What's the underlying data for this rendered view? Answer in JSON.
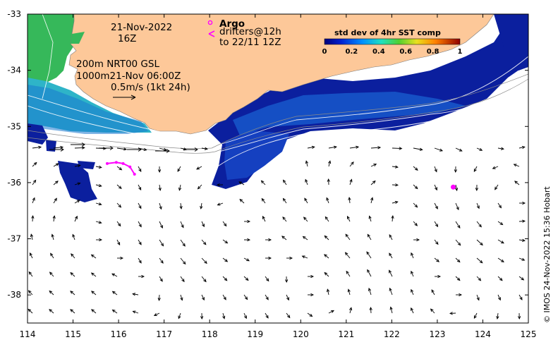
{
  "annotation": {
    "date": "21-Nov-2022",
    "hour": "16Z",
    "depth_line1": "200m  NRT00 GSL",
    "depth_line2": "1000m21-Nov 06:00Z",
    "scale_label": "0.5m/s (1kt 24h)",
    "argo_label": "Argo",
    "drifters_line1": "drifters@12h",
    "drifters_line2": "to 22/11 12Z"
  },
  "colorbar": {
    "title": "std dev of 4hr SST comp",
    "ticks": [
      "0",
      "0.2",
      "0.4",
      "0.6",
      "0.8",
      "1"
    ]
  },
  "credit": "© IMOS 24-Nov-2022 15:36 Hobart",
  "axes": {
    "x_ticks": [
      "114",
      "115",
      "116",
      "117",
      "118",
      "119",
      "120",
      "121",
      "122",
      "123",
      "124",
      "125"
    ],
    "y_ticks": [
      "-33",
      "-34",
      "-35",
      "-36",
      "-37",
      "-38"
    ],
    "x_range": [
      114,
      125
    ],
    "y_range": [
      -38.5,
      -33
    ]
  },
  "colors": {
    "land": "#fdc899",
    "ocean_high": "#0a1f9e",
    "ocean_mid": "#1c7fd8",
    "ocean_cyan": "#2fc7c0",
    "ocean_green": "#3fb84a",
    "argo": "#ff00ff",
    "drifter": "#ff00ff"
  },
  "markers": {
    "argo_positions": [
      {
        "lon": 123.35,
        "lat": -36.08
      }
    ],
    "drifter_track": [
      {
        "lon": 115.75,
        "lat": -35.66
      },
      {
        "lon": 115.95,
        "lat": -35.64
      },
      {
        "lon": 116.1,
        "lat": -35.66
      },
      {
        "lon": 116.25,
        "lat": -35.72
      },
      {
        "lon": 116.35,
        "lat": -35.85
      }
    ]
  }
}
